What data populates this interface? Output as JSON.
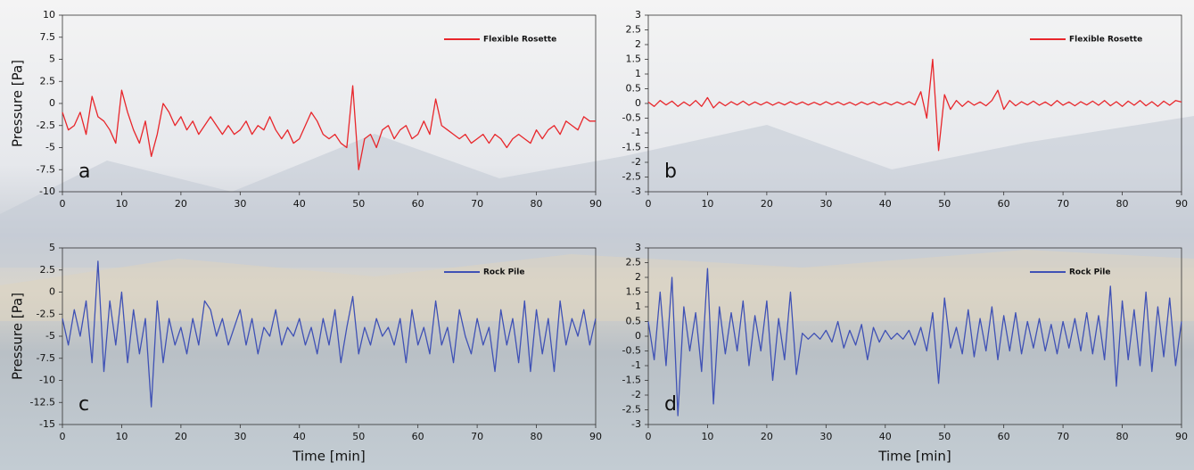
{
  "chart_data": [
    {
      "type": "line",
      "panel_label": "a",
      "ylabel": "Pressure [Pa]",
      "xlim": [
        0,
        90
      ],
      "xticks": [
        0,
        10,
        20,
        30,
        40,
        50,
        60,
        70,
        80,
        90
      ],
      "ylim": [
        -10,
        10
      ],
      "yticks": [
        -10,
        -7.5,
        -5,
        -2.5,
        0,
        2.5,
        5,
        7.5,
        10
      ],
      "legend": "upper right",
      "x": [
        0,
        1,
        2,
        3,
        4,
        5,
        6,
        7,
        8,
        9,
        10,
        11,
        12,
        13,
        14,
        15,
        16,
        17,
        18,
        19,
        20,
        21,
        22,
        23,
        24,
        25,
        26,
        27,
        28,
        29,
        30,
        31,
        32,
        33,
        34,
        35,
        36,
        37,
        38,
        39,
        40,
        41,
        42,
        43,
        44,
        45,
        46,
        47,
        48,
        49,
        50,
        51,
        52,
        53,
        54,
        55,
        56,
        57,
        58,
        59,
        60,
        61,
        62,
        63,
        64,
        65,
        66,
        67,
        68,
        69,
        70,
        71,
        72,
        73,
        74,
        75,
        76,
        77,
        78,
        79,
        80,
        81,
        82,
        83,
        84,
        85,
        86,
        87,
        88,
        89,
        90
      ],
      "series": [
        {
          "name": "Flexible Rosette",
          "color": "#e8262b",
          "values": [
            -1,
            -3,
            -2.5,
            -1,
            -3.5,
            0.8,
            -1.5,
            -2,
            -3,
            -4.5,
            1.5,
            -1,
            -3,
            -4.5,
            -2,
            -6,
            -3.5,
            0,
            -1,
            -2.5,
            -1.5,
            -3,
            -2,
            -3.5,
            -2.5,
            -1.5,
            -2.5,
            -3.5,
            -2.5,
            -3.5,
            -3,
            -2,
            -3.5,
            -2.5,
            -3,
            -1.5,
            -3,
            -4,
            -3,
            -4.5,
            -4,
            -2.5,
            -1,
            -2,
            -3.5,
            -4,
            -3.5,
            -4.5,
            -5,
            2,
            -7.5,
            -4,
            -3.5,
            -5,
            -3,
            -2.5,
            -4,
            -3,
            -2.5,
            -4,
            -3.5,
            -2,
            -3.5,
            0.5,
            -2.5,
            -3,
            -3.5,
            -4,
            -3.5,
            -4.5,
            -4,
            -3.5,
            -4.5,
            -3.5,
            -4,
            -5,
            -4,
            -3.5,
            -4,
            -4.5,
            -3,
            -4,
            -3,
            -2.5,
            -3.5,
            -2,
            -2.5,
            -3,
            -1.5,
            -2,
            -2
          ]
        }
      ]
    },
    {
      "type": "line",
      "panel_label": "b",
      "xlim": [
        0,
        90
      ],
      "xticks": [
        0,
        10,
        20,
        30,
        40,
        50,
        60,
        70,
        80,
        90
      ],
      "ylim": [
        -3,
        3
      ],
      "yticks": [
        -3,
        -2.5,
        -2,
        -1.5,
        -1,
        -0.5,
        0,
        0.5,
        1,
        1.5,
        2,
        2.5,
        3
      ],
      "legend": "upper right",
      "x": [
        0,
        1,
        2,
        3,
        4,
        5,
        6,
        7,
        8,
        9,
        10,
        11,
        12,
        13,
        14,
        15,
        16,
        17,
        18,
        19,
        20,
        21,
        22,
        23,
        24,
        25,
        26,
        27,
        28,
        29,
        30,
        31,
        32,
        33,
        34,
        35,
        36,
        37,
        38,
        39,
        40,
        41,
        42,
        43,
        44,
        45,
        46,
        47,
        48,
        49,
        50,
        51,
        52,
        53,
        54,
        55,
        56,
        57,
        58,
        59,
        60,
        61,
        62,
        63,
        64,
        65,
        66,
        67,
        68,
        69,
        70,
        71,
        72,
        73,
        74,
        75,
        76,
        77,
        78,
        79,
        80,
        81,
        82,
        83,
        84,
        85,
        86,
        87,
        88,
        89,
        90
      ],
      "series": [
        {
          "name": "Flexible Rosette",
          "color": "#e8262b",
          "values": [
            0.05,
            -0.1,
            0.1,
            -0.05,
            0.08,
            -0.1,
            0.05,
            -0.08,
            0.1,
            -0.1,
            0.2,
            -0.15,
            0.05,
            -0.08,
            0.06,
            -0.05,
            0.08,
            -0.06,
            0.05,
            -0.05,
            0.05,
            -0.06,
            0.04,
            -0.05,
            0.06,
            -0.04,
            0.05,
            -0.05,
            0.04,
            -0.05,
            0.06,
            -0.04,
            0.05,
            -0.05,
            0.04,
            -0.06,
            0.05,
            -0.04,
            0.05,
            -0.05,
            0.04,
            -0.05,
            0.05,
            -0.04,
            0.06,
            -0.05,
            0.4,
            -0.5,
            1.5,
            -1.6,
            0.3,
            -0.2,
            0.1,
            -0.1,
            0.08,
            -0.06,
            0.05,
            -0.08,
            0.1,
            0.45,
            -0.2,
            0.1,
            -0.08,
            0.06,
            -0.05,
            0.08,
            -0.06,
            0.05,
            -0.08,
            0.1,
            -0.06,
            0.05,
            -0.08,
            0.06,
            -0.05,
            0.08,
            -0.06,
            0.1,
            -0.08,
            0.06,
            -0.1,
            0.08,
            -0.06,
            0.1,
            -0.08,
            0.06,
            -0.1,
            0.08,
            -0.06,
            0.1,
            0.05
          ]
        }
      ]
    },
    {
      "type": "line",
      "panel_label": "c",
      "ylabel": "Pressure [Pa]",
      "xlabel": "Time [min]",
      "xlim": [
        0,
        90
      ],
      "xticks": [
        0,
        10,
        20,
        30,
        40,
        50,
        60,
        70,
        80,
        90
      ],
      "ylim": [
        -15,
        5
      ],
      "yticks": [
        -15,
        -12.5,
        -10,
        -7.5,
        -5,
        -2.5,
        0,
        2.5,
        5
      ],
      "legend": "upper right",
      "x": [
        0,
        1,
        2,
        3,
        4,
        5,
        6,
        7,
        8,
        9,
        10,
        11,
        12,
        13,
        14,
        15,
        16,
        17,
        18,
        19,
        20,
        21,
        22,
        23,
        24,
        25,
        26,
        27,
        28,
        29,
        30,
        31,
        32,
        33,
        34,
        35,
        36,
        37,
        38,
        39,
        40,
        41,
        42,
        43,
        44,
        45,
        46,
        47,
        48,
        49,
        50,
        51,
        52,
        53,
        54,
        55,
        56,
        57,
        58,
        59,
        60,
        61,
        62,
        63,
        64,
        65,
        66,
        67,
        68,
        69,
        70,
        71,
        72,
        73,
        74,
        75,
        76,
        77,
        78,
        79,
        80,
        81,
        82,
        83,
        84,
        85,
        86,
        87,
        88,
        89,
        90
      ],
      "series": [
        {
          "name": "Rock Pile",
          "color": "#3f51b5",
          "values": [
            -3,
            -6,
            -2,
            -5,
            -1,
            -8,
            3.5,
            -9,
            -1,
            -6,
            0,
            -8,
            -2,
            -7,
            -3,
            -13,
            -1,
            -8,
            -3,
            -6,
            -4,
            -7,
            -3,
            -6,
            -1,
            -2,
            -5,
            -3,
            -6,
            -4,
            -2,
            -6,
            -3,
            -7,
            -4,
            -5,
            -2,
            -6,
            -4,
            -5,
            -3,
            -6,
            -4,
            -7,
            -3,
            -6,
            -2,
            -8,
            -4,
            -0.5,
            -7,
            -4,
            -6,
            -3,
            -5,
            -4,
            -6,
            -3,
            -8,
            -2,
            -6,
            -4,
            -7,
            -1,
            -6,
            -4,
            -8,
            -2,
            -5,
            -7,
            -3,
            -6,
            -4,
            -9,
            -2,
            -6,
            -3,
            -8,
            -1,
            -9,
            -2,
            -7,
            -3,
            -9,
            -1,
            -6,
            -3,
            -5,
            -2,
            -6,
            -3
          ]
        }
      ]
    },
    {
      "type": "line",
      "panel_label": "d",
      "xlabel": "Time [min]",
      "xlim": [
        0,
        90
      ],
      "xticks": [
        0,
        10,
        20,
        30,
        40,
        50,
        60,
        70,
        80,
        90
      ],
      "ylim": [
        -3,
        3
      ],
      "yticks": [
        -3,
        -2.5,
        -2,
        -1.5,
        -1,
        -0.5,
        0,
        0.5,
        1,
        1.5,
        2,
        2.5,
        3
      ],
      "legend": "upper right",
      "x": [
        0,
        1,
        2,
        3,
        4,
        5,
        6,
        7,
        8,
        9,
        10,
        11,
        12,
        13,
        14,
        15,
        16,
        17,
        18,
        19,
        20,
        21,
        22,
        23,
        24,
        25,
        26,
        27,
        28,
        29,
        30,
        31,
        32,
        33,
        34,
        35,
        36,
        37,
        38,
        39,
        40,
        41,
        42,
        43,
        44,
        45,
        46,
        47,
        48,
        49,
        50,
        51,
        52,
        53,
        54,
        55,
        56,
        57,
        58,
        59,
        60,
        61,
        62,
        63,
        64,
        65,
        66,
        67,
        68,
        69,
        70,
        71,
        72,
        73,
        74,
        75,
        76,
        77,
        78,
        79,
        80,
        81,
        82,
        83,
        84,
        85,
        86,
        87,
        88,
        89,
        90
      ],
      "series": [
        {
          "name": "Rock Pile",
          "color": "#3f51b5",
          "values": [
            0.5,
            -0.8,
            1.5,
            -1,
            2,
            -2.7,
            1,
            -0.5,
            0.8,
            -1.2,
            2.3,
            -2.3,
            1,
            -0.6,
            0.8,
            -0.5,
            1.2,
            -1,
            0.7,
            -0.5,
            1.2,
            -1.5,
            0.6,
            -0.8,
            1.5,
            -1.3,
            0.1,
            -0.1,
            0.1,
            -0.1,
            0.2,
            -0.2,
            0.5,
            -0.4,
            0.2,
            -0.3,
            0.4,
            -0.8,
            0.3,
            -0.2,
            0.2,
            -0.1,
            0.1,
            -0.1,
            0.2,
            -0.3,
            0.3,
            -0.5,
            0.8,
            -1.6,
            1.3,
            -0.4,
            0.3,
            -0.6,
            0.9,
            -0.7,
            0.6,
            -0.5,
            1,
            -0.8,
            0.7,
            -0.5,
            0.8,
            -0.6,
            0.5,
            -0.4,
            0.6,
            -0.5,
            0.4,
            -0.6,
            0.5,
            -0.4,
            0.6,
            -0.5,
            0.8,
            -0.6,
            0.7,
            -0.8,
            1.7,
            -1.7,
            1.2,
            -0.8,
            0.9,
            -1,
            1.5,
            -1.2,
            1,
            -0.7,
            1.3,
            -1,
            0.5
          ]
        }
      ]
    }
  ]
}
